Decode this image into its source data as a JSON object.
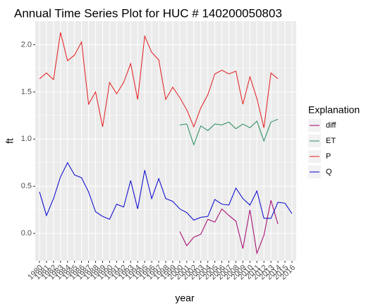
{
  "chart_data": {
    "type": "line",
    "title": "Annual Time Series Plot for HUC # 140200050803",
    "x_label": "year",
    "y_label": "ft",
    "legend_title": "Explanation",
    "categories": [
      "1980",
      "1981",
      "1982",
      "1983",
      "1984",
      "1985",
      "1986",
      "1987",
      "1988",
      "1989",
      "1990",
      "1991",
      "1992",
      "1993",
      "1994",
      "1995",
      "1996",
      "1997",
      "1998",
      "1999",
      "2000",
      "2001",
      "2002",
      "2003",
      "2004",
      "2005",
      "2006",
      "2007",
      "2008",
      "2009",
      "2010",
      "2011",
      "2012",
      "2013",
      "2014",
      "2015",
      "2016"
    ],
    "series": [
      {
        "name": "diff",
        "color": "#a3006b",
        "values": [
          null,
          null,
          null,
          null,
          null,
          null,
          null,
          null,
          null,
          null,
          null,
          null,
          null,
          null,
          null,
          null,
          null,
          null,
          null,
          null,
          0.02,
          -0.13,
          -0.04,
          -0.01,
          0.15,
          0.12,
          0.26,
          0.19,
          0.13,
          -0.16,
          0.25,
          -0.21,
          -0.02,
          0.35,
          0.1,
          null,
          null
        ]
      },
      {
        "name": "ET",
        "color": "#238b5a",
        "values": [
          null,
          null,
          null,
          null,
          null,
          null,
          null,
          null,
          null,
          null,
          null,
          null,
          null,
          null,
          null,
          null,
          null,
          null,
          null,
          null,
          1.15,
          1.16,
          0.94,
          1.14,
          1.09,
          1.16,
          1.15,
          1.18,
          1.11,
          1.16,
          1.12,
          1.19,
          0.98,
          1.18,
          1.21,
          null,
          null
        ]
      },
      {
        "name": "P",
        "color": "#e41a1c",
        "values": [
          1.64,
          1.7,
          1.63,
          2.13,
          1.83,
          1.89,
          2.03,
          1.37,
          1.5,
          1.13,
          1.6,
          1.48,
          1.6,
          1.8,
          1.42,
          2.09,
          1.92,
          1.84,
          1.42,
          1.55,
          1.44,
          1.31,
          1.13,
          1.33,
          1.47,
          1.69,
          1.73,
          1.69,
          1.72,
          1.37,
          1.66,
          1.43,
          1.12,
          1.7,
          1.64,
          null,
          null
        ]
      },
      {
        "name": "Q",
        "color": "#0000cc",
        "values": [
          0.44,
          0.19,
          0.37,
          0.6,
          0.75,
          0.62,
          0.59,
          0.44,
          0.23,
          0.18,
          0.15,
          0.31,
          0.28,
          0.56,
          0.26,
          0.67,
          0.37,
          0.58,
          0.37,
          0.34,
          0.26,
          0.22,
          0.14,
          0.17,
          0.18,
          0.36,
          0.31,
          0.3,
          0.48,
          0.37,
          0.3,
          0.45,
          0.16,
          0.16,
          0.33,
          0.32,
          0.21
        ]
      }
    ],
    "ylim": [
      -0.29,
      2.25
    ],
    "yticks": [
      {
        "value": 0,
        "label": "0.0"
      },
      0.5,
      {
        "value": 1,
        "label": "1.0"
      },
      1.5,
      {
        "value": 2,
        "label": "2.0"
      }
    ],
    "grid": true
  }
}
